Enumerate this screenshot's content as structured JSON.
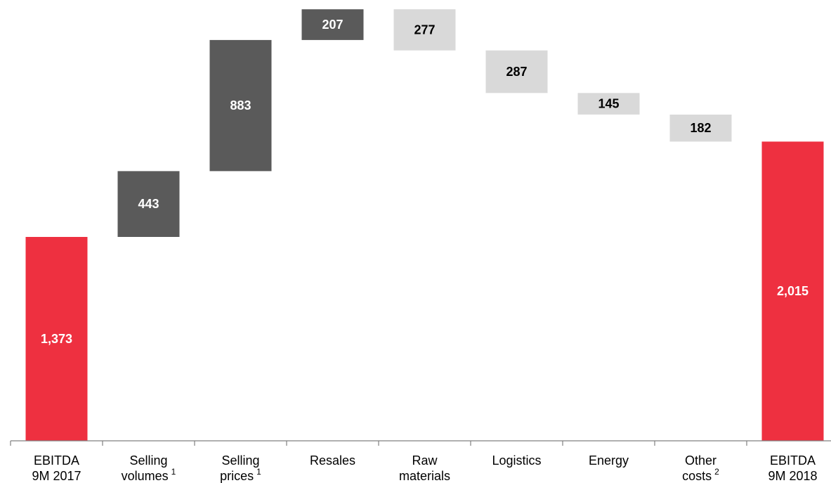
{
  "chart_data": {
    "type": "bar",
    "subtype": "waterfall",
    "title": "",
    "xlabel": "",
    "ylabel": "",
    "ylim": [
      0,
      2600
    ],
    "grid": false,
    "legend": "none",
    "colors": {
      "total": "#ee3040",
      "increase": "#5a5a5a",
      "decrease": "#d9d9d9",
      "axis": "#808080",
      "label_on_dark": "#ffffff",
      "label_on_light": "#000000"
    },
    "categories": [
      {
        "line1": "EBITDA",
        "line2": "9M 2017",
        "sup": ""
      },
      {
        "line1": "Selling",
        "line2": "volumes",
        "sup": "1"
      },
      {
        "line1": "Selling",
        "line2": "prices",
        "sup": "1"
      },
      {
        "line1": "Resales",
        "line2": "",
        "sup": ""
      },
      {
        "line1": "Raw",
        "line2": "materials",
        "sup": ""
      },
      {
        "line1": "Logistics",
        "line2": "",
        "sup": ""
      },
      {
        "line1": "Energy",
        "line2": "",
        "sup": ""
      },
      {
        "line1": "Other",
        "line2": "costs",
        "sup": "2"
      },
      {
        "line1": "EBITDA",
        "line2": "9M 2018",
        "sup": ""
      }
    ],
    "bars": [
      {
        "kind": "total",
        "value": 1373,
        "label": "1,373"
      },
      {
        "kind": "increase",
        "value": 443,
        "label": "443"
      },
      {
        "kind": "increase",
        "value": 883,
        "label": "883"
      },
      {
        "kind": "increase",
        "value": 207,
        "label": "207"
      },
      {
        "kind": "decrease",
        "value": 277,
        "label": "277"
      },
      {
        "kind": "decrease",
        "value": 287,
        "label": "287"
      },
      {
        "kind": "decrease",
        "value": 145,
        "label": "145"
      },
      {
        "kind": "decrease",
        "value": 182,
        "label": "182"
      },
      {
        "kind": "total",
        "value": 2015,
        "label": "2,015"
      }
    ]
  }
}
